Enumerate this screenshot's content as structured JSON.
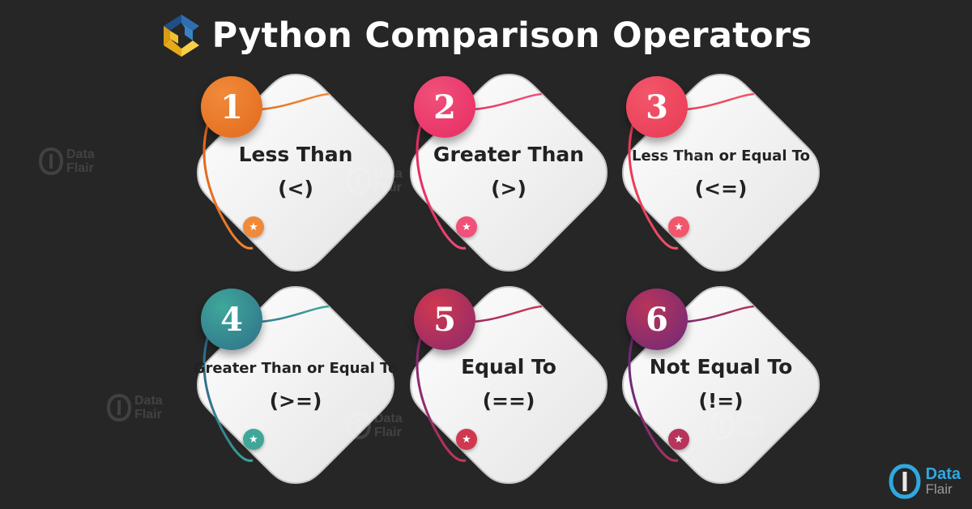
{
  "header": {
    "title": "Python Comparison Operators",
    "logo_icon": "python-logo-icon"
  },
  "cards": [
    {
      "number": "1",
      "name": "Less Than",
      "operator": "(<)",
      "size": "big",
      "color": "#e36a1c",
      "color2": "#f08a3a"
    },
    {
      "number": "2",
      "name": "Greater Than",
      "operator": "(>)",
      "size": "big",
      "color": "#e62c63",
      "color2": "#f0507a"
    },
    {
      "number": "3",
      "name": "Less Than or Equal To",
      "operator": "(<=)",
      "size": "small",
      "color": "#e83a55",
      "color2": "#f2566a"
    },
    {
      "number": "4",
      "name": "Greater Than or Equal To",
      "operator": "(>=)",
      "size": "small",
      "color": "#2f6f8a",
      "color2": "#3fa79a"
    },
    {
      "number": "5",
      "name": "Equal To",
      "operator": "(==)",
      "size": "big",
      "color": "#8a2a6e",
      "color2": "#d0384e"
    },
    {
      "number": "6",
      "name": "Not Equal To",
      "operator": "(!=)",
      "size": "big",
      "color": "#6e2a7a",
      "color2": "#b8345a"
    }
  ],
  "watermark": {
    "line1": "Data",
    "line2": "Flair"
  },
  "brand": {
    "line1": "Data",
    "line2": "Flair"
  }
}
